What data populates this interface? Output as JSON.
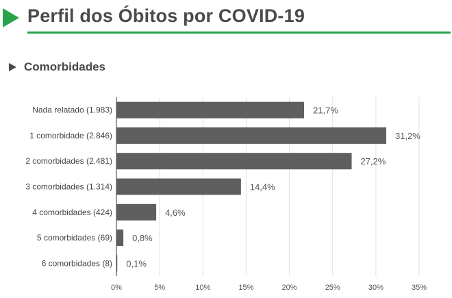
{
  "header": {
    "title": "Perfil dos Óbitos por COVID-19",
    "accent_color": "#2aa34a"
  },
  "section": {
    "title": "Comorbidades"
  },
  "chart_data": {
    "type": "bar",
    "orientation": "horizontal",
    "categories": [
      "Nada relatado (1.983)",
      "1 comorbidade (2.846)",
      "2 comorbidades (2.481)",
      "3 comorbidades (1.314)",
      "4 comorbidades (424)",
      "5 comorbidades (69)",
      "6 comorbidades (8)"
    ],
    "values": [
      21.7,
      31.2,
      27.2,
      14.4,
      4.6,
      0.8,
      0.1
    ],
    "value_labels": [
      "21,7%",
      "31,2%",
      "27,2%",
      "14,4%",
      "4,6%",
      "0,8%",
      "0,1%"
    ],
    "x_ticks": [
      0,
      5,
      10,
      15,
      20,
      25,
      30,
      35
    ],
    "x_tick_labels": [
      "0%",
      "5%",
      "10%",
      "15%",
      "20%",
      "25%",
      "30%",
      "35%"
    ],
    "xlim": [
      0,
      35
    ],
    "bar_color": "#5f5f5f",
    "grid": true,
    "legend": "none"
  }
}
